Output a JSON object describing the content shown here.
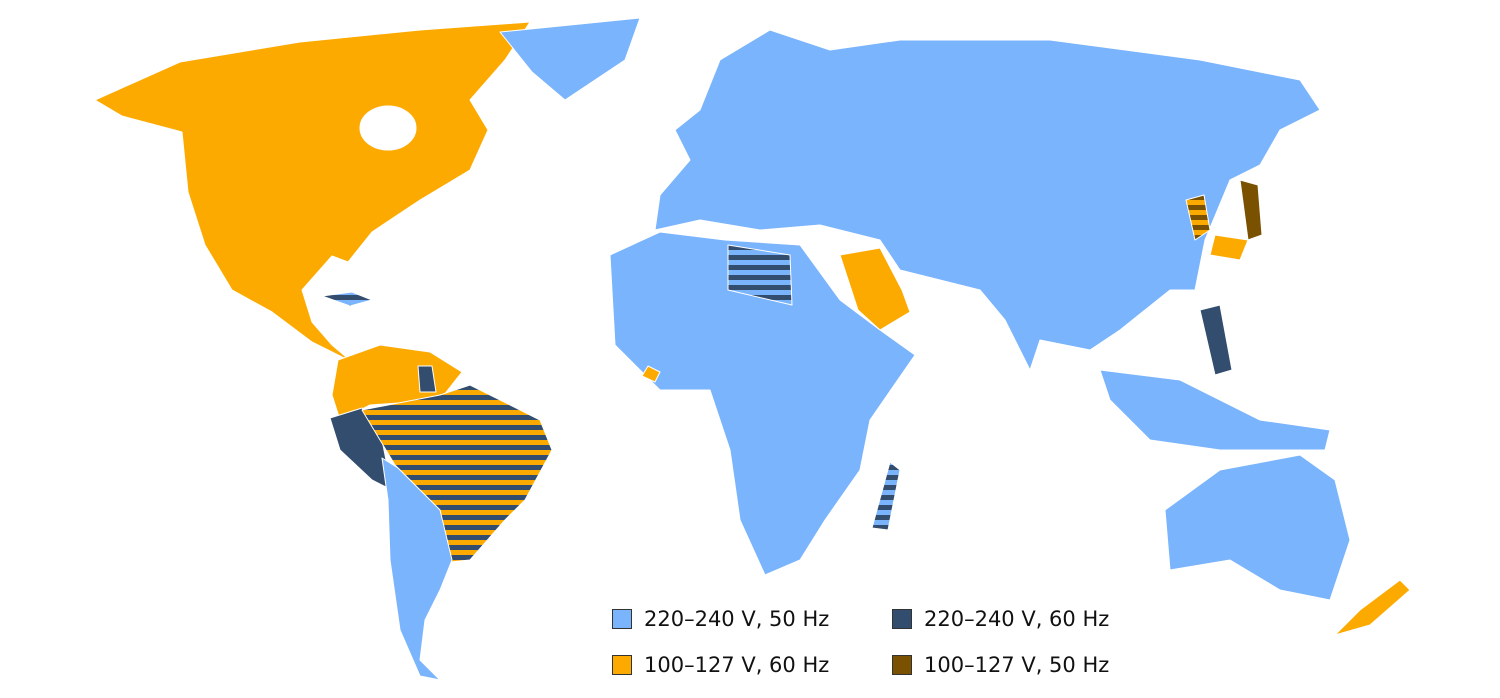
{
  "colors": {
    "v230_50": "#7ab4fc",
    "v230_60": "#334d6e",
    "v110_60": "#fdaa00",
    "v110_50": "#7a5100"
  },
  "legend": [
    {
      "label": "220–240 V, 50 Hz",
      "color": "#7ab4fc"
    },
    {
      "label": "220–240 V, 60 Hz",
      "color": "#334d6e"
    },
    {
      "label": "100–127 V, 60 Hz",
      "color": "#fdaa00"
    },
    {
      "label": "100–127 V, 50 Hz",
      "color": "#7a5100"
    }
  ]
}
